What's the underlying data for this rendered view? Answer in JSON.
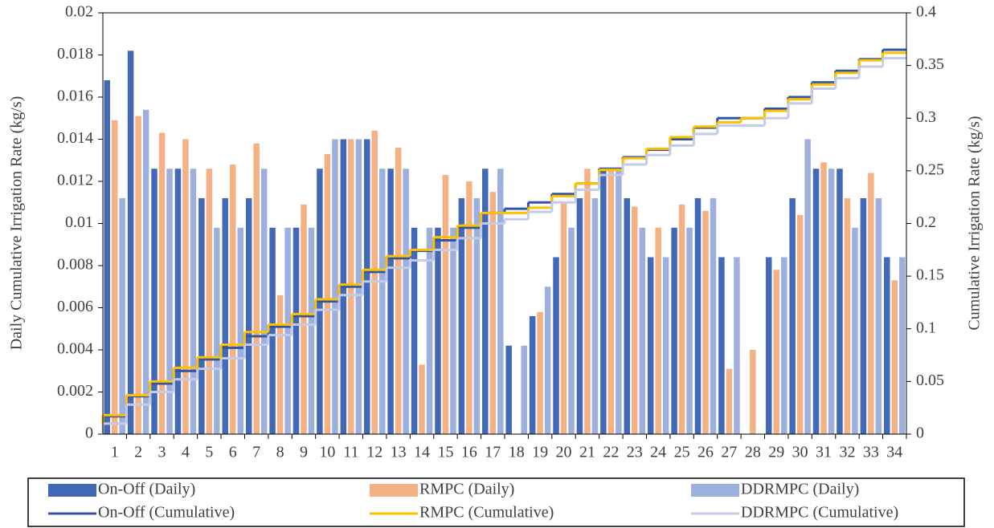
{
  "chart_data": {
    "type": "combo",
    "y_label": "Daily Cumulative Irrigation Rate (kg/s)",
    "y2_label": "Cumulative Irrigation Rate (kg/s)",
    "categories": [
      "1",
      "2",
      "3",
      "4",
      "5",
      "6",
      "7",
      "8",
      "9",
      "10",
      "11",
      "12",
      "13",
      "14",
      "15",
      "16",
      "17",
      "18",
      "19",
      "20",
      "21",
      "22",
      "23",
      "24",
      "25",
      "26",
      "27",
      "28",
      "29",
      "30",
      "31",
      "32",
      "33",
      "34"
    ],
    "ylim": [
      0,
      0.02
    ],
    "yticks": [
      0,
      0.002,
      0.004,
      0.006,
      0.008,
      0.01,
      0.012,
      0.014,
      0.016,
      0.018,
      0.02
    ],
    "y2lim": [
      0,
      0.4
    ],
    "y2ticks": [
      0,
      0.05,
      0.1,
      0.15,
      0.2,
      0.25,
      0.3,
      0.35,
      0.4
    ],
    "series": [
      {
        "name": "On-Off (Daily)",
        "type": "bar",
        "color": "#4169b8",
        "values": [
          0.0168,
          0.0182,
          0.0126,
          0.0126,
          0.0112,
          0.0112,
          0.0112,
          0.0098,
          0.0098,
          0.0126,
          0.014,
          0.014,
          0.0126,
          0.0098,
          0.0098,
          0.0112,
          0.0126,
          0.0042,
          0.0056,
          0.0084,
          0.0112,
          0.0126,
          0.0112,
          0.0084,
          0.0098,
          0.0112,
          0.0084,
          0,
          0.0084,
          0.0112,
          0.0126,
          0.0126,
          0.0112,
          0.0084
        ]
      },
      {
        "name": "RMPC (Daily)",
        "type": "bar",
        "color": "#f4b183",
        "values": [
          0.0149,
          0.0151,
          0.0143,
          0.014,
          0.0126,
          0.0128,
          0.0138,
          0.0066,
          0.0109,
          0.0133,
          0.014,
          0.0144,
          0.0136,
          0.0033,
          0.0123,
          0.012,
          0.0115,
          0,
          0.0058,
          0.011,
          0.0126,
          0.0126,
          0.0108,
          0.0098,
          0.0109,
          0.0106,
          0.0031,
          0.004,
          0.0078,
          0.0104,
          0.0129,
          0.0112,
          0.0124,
          0.0073
        ]
      },
      {
        "name": "DDRMPC (Daily)",
        "type": "bar",
        "color": "#9dafdc",
        "values": [
          0.0112,
          0.0154,
          0.0126,
          0.0126,
          0.0098,
          0.0098,
          0.0126,
          0.0098,
          0.0098,
          0.014,
          0.014,
          0.0126,
          0.0126,
          0.0098,
          0.0098,
          0.0112,
          0.0126,
          0.0042,
          0.007,
          0.0098,
          0.0112,
          0.0126,
          0.0098,
          0.0084,
          0.0098,
          0.0112,
          0.0084,
          0,
          0.0084,
          0.014,
          0.0126,
          0.0098,
          0.0112,
          0.0084
        ]
      },
      {
        "name": "On-Off (Cumulative)",
        "type": "step",
        "axis": "y2",
        "color": "#2f55a4",
        "values": [
          0.017,
          0.036,
          0.048,
          0.06,
          0.071,
          0.082,
          0.093,
          0.102,
          0.112,
          0.126,
          0.14,
          0.154,
          0.167,
          0.174,
          0.184,
          0.196,
          0.21,
          0.214,
          0.22,
          0.228,
          0.238,
          0.252,
          0.263,
          0.27,
          0.28,
          0.291,
          0.3,
          0.3,
          0.309,
          0.32,
          0.334,
          0.345,
          0.356,
          0.365
        ]
      },
      {
        "name": "RMPC (Cumulative)",
        "type": "step",
        "axis": "y2",
        "color": "#ffc000",
        "values": [
          0.018,
          0.037,
          0.05,
          0.063,
          0.073,
          0.085,
          0.097,
          0.104,
          0.114,
          0.128,
          0.142,
          0.156,
          0.169,
          0.175,
          0.187,
          0.198,
          0.21,
          0.21,
          0.215,
          0.226,
          0.238,
          0.251,
          0.262,
          0.271,
          0.282,
          0.292,
          0.296,
          0.3,
          0.307,
          0.318,
          0.332,
          0.343,
          0.355,
          0.362
        ]
      },
      {
        "name": "DDRMPC (Cumulative)",
        "type": "step",
        "axis": "y2",
        "color": "#c3cbe8",
        "values": [
          0.01,
          0.028,
          0.04,
          0.052,
          0.062,
          0.072,
          0.085,
          0.094,
          0.104,
          0.118,
          0.132,
          0.145,
          0.158,
          0.165,
          0.175,
          0.186,
          0.2,
          0.204,
          0.211,
          0.22,
          0.232,
          0.246,
          0.256,
          0.265,
          0.274,
          0.285,
          0.293,
          0.293,
          0.3,
          0.314,
          0.328,
          0.338,
          0.349,
          0.357
        ]
      }
    ]
  }
}
